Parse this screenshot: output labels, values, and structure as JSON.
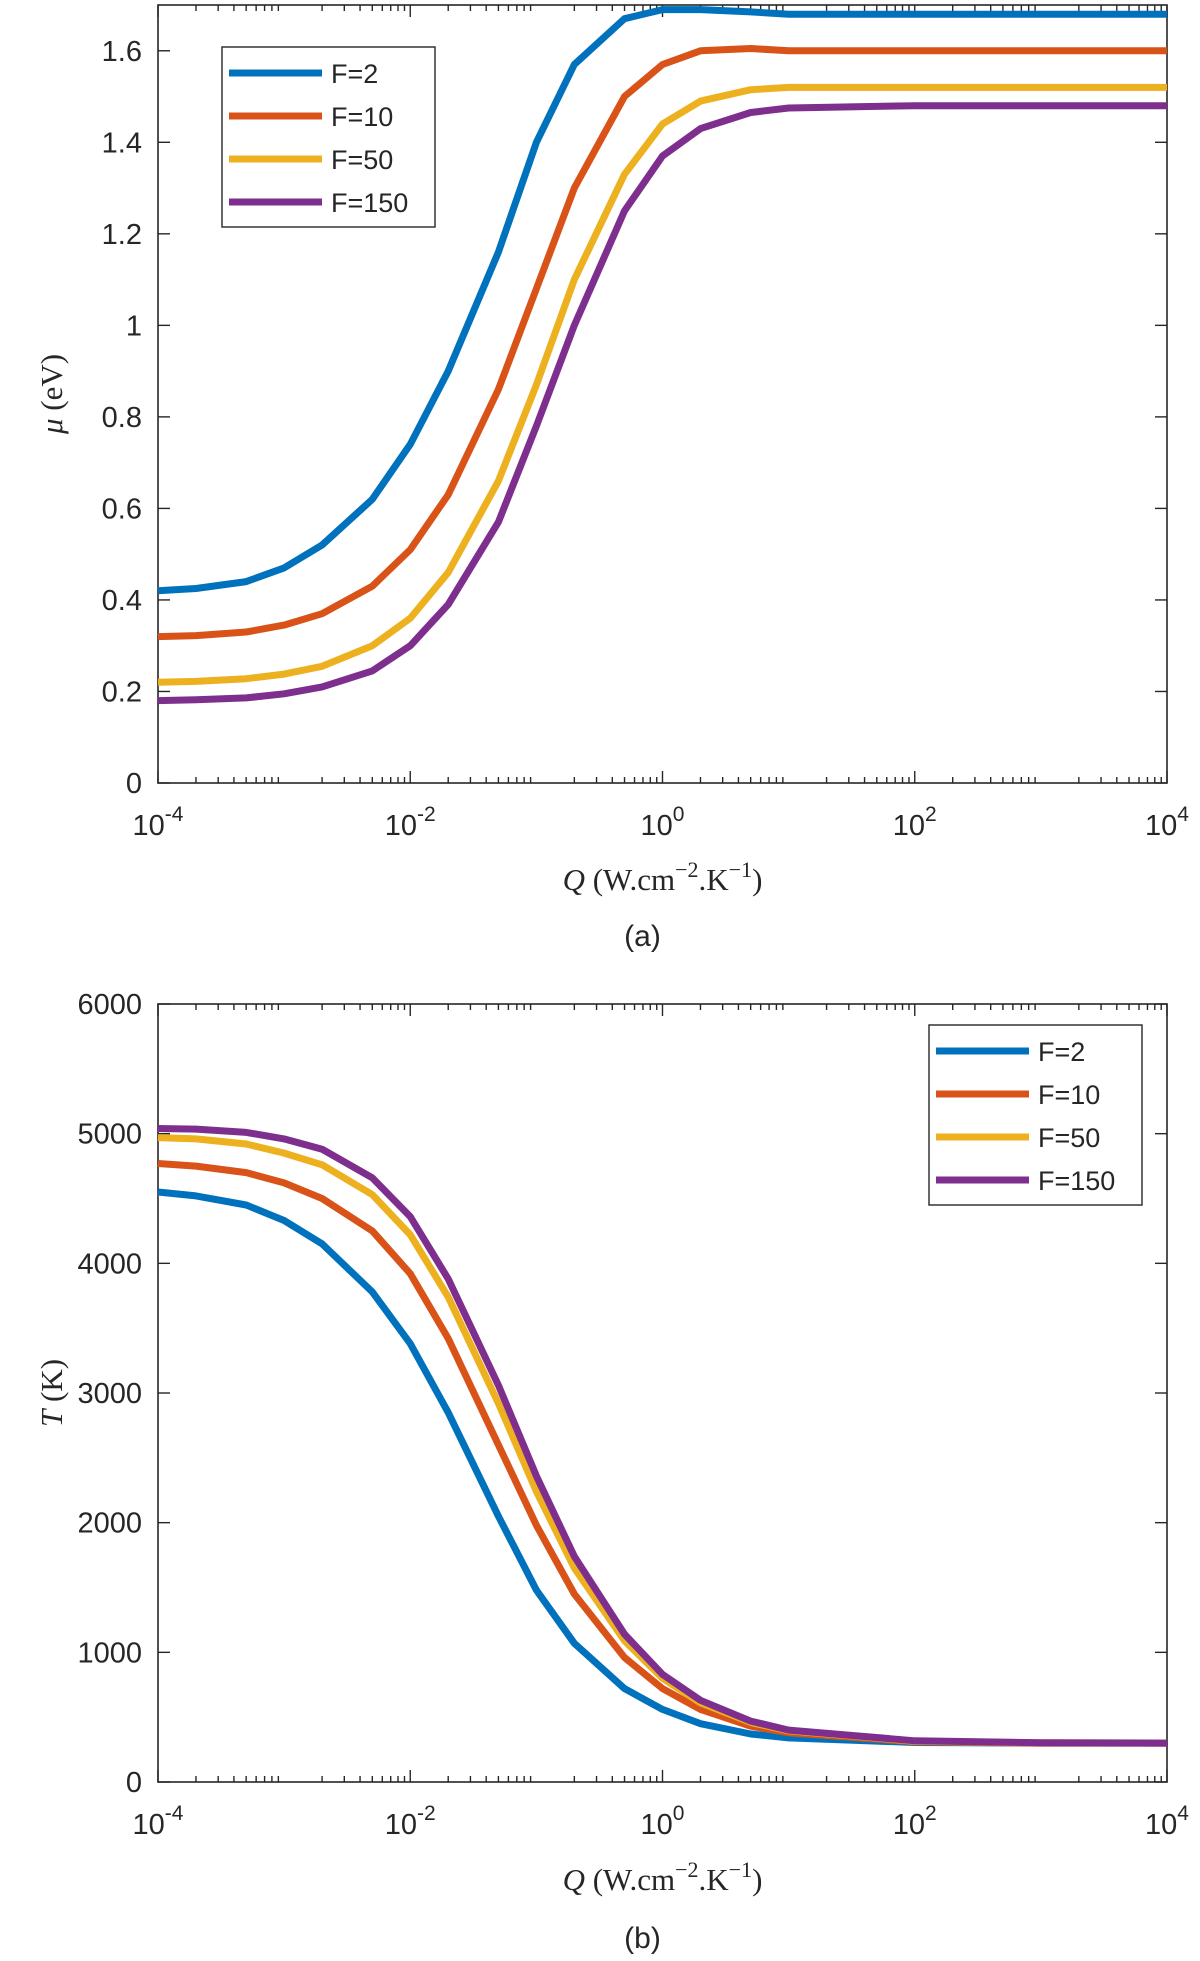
{
  "chart_data": [
    {
      "type": "line",
      "panel": "a",
      "caption": "(a)",
      "xscale": "log",
      "xlim": [
        0.0001,
        10000
      ],
      "ylim": [
        0,
        1.7
      ],
      "xticks": [
        {
          "value": 0.0001,
          "base": "10",
          "exp": "-4"
        },
        {
          "value": 0.01,
          "base": "10",
          "exp": "-2"
        },
        {
          "value": 1,
          "base": "10",
          "exp": "0"
        },
        {
          "value": 100,
          "base": "10",
          "exp": "2"
        },
        {
          "value": 10000,
          "base": "10",
          "exp": "4"
        }
      ],
      "yticks": [
        {
          "value": 0,
          "label": "0"
        },
        {
          "value": 0.2,
          "label": "0.2"
        },
        {
          "value": 0.4,
          "label": "0.4"
        },
        {
          "value": 0.6,
          "label": "0.6"
        },
        {
          "value": 0.8,
          "label": "0.8"
        },
        {
          "value": 1,
          "label": "1"
        },
        {
          "value": 1.2,
          "label": "1.2"
        },
        {
          "value": 1.4,
          "label": "1.4"
        },
        {
          "value": 1.6,
          "label": "1.6"
        }
      ],
      "ylabel": {
        "symbol": "μ",
        "unit": "(eV)"
      },
      "xlabel": {
        "symbol": "Q",
        "unit_pre": "(W.cm",
        "exp1": "−2",
        "mid": ".K",
        "exp2": "−1",
        "unit_post": ")"
      },
      "legend": {
        "placement": "top-left"
      },
      "series": [
        {
          "name": "F=2",
          "color": "#0072BD",
          "x": [
            0.0001,
            0.0002,
            0.0005,
            0.001,
            0.002,
            0.005,
            0.01,
            0.02,
            0.05,
            0.1,
            0.2,
            0.5,
            1,
            2,
            5,
            10,
            100,
            1000,
            10000
          ],
          "y": [
            0.42,
            0.425,
            0.44,
            0.47,
            0.52,
            0.62,
            0.74,
            0.9,
            1.16,
            1.4,
            1.57,
            1.67,
            1.69,
            1.69,
            1.685,
            1.68,
            1.68,
            1.68,
            1.68
          ]
        },
        {
          "name": "F=10",
          "color": "#D95319",
          "x": [
            0.0001,
            0.0002,
            0.0005,
            0.001,
            0.002,
            0.005,
            0.01,
            0.02,
            0.05,
            0.1,
            0.2,
            0.5,
            1,
            2,
            5,
            10,
            100,
            1000,
            10000
          ],
          "y": [
            0.32,
            0.322,
            0.33,
            0.345,
            0.37,
            0.43,
            0.51,
            0.63,
            0.86,
            1.08,
            1.3,
            1.5,
            1.57,
            1.6,
            1.605,
            1.6,
            1.6,
            1.6,
            1.6
          ]
        },
        {
          "name": "F=50",
          "color": "#EDB120",
          "x": [
            0.0001,
            0.0002,
            0.0005,
            0.001,
            0.002,
            0.005,
            0.01,
            0.02,
            0.05,
            0.1,
            0.2,
            0.5,
            1,
            2,
            5,
            10,
            100,
            1000,
            10000
          ],
          "y": [
            0.22,
            0.222,
            0.228,
            0.238,
            0.255,
            0.3,
            0.36,
            0.46,
            0.66,
            0.87,
            1.1,
            1.33,
            1.44,
            1.49,
            1.515,
            1.52,
            1.52,
            1.52,
            1.52
          ]
        },
        {
          "name": "F=150",
          "color": "#7E2F8E",
          "x": [
            0.0001,
            0.0002,
            0.0005,
            0.001,
            0.002,
            0.005,
            0.01,
            0.02,
            0.05,
            0.1,
            0.2,
            0.5,
            1,
            2,
            5,
            10,
            100,
            1000,
            10000
          ],
          "y": [
            0.18,
            0.182,
            0.186,
            0.195,
            0.21,
            0.245,
            0.3,
            0.39,
            0.57,
            0.78,
            1.0,
            1.25,
            1.37,
            1.43,
            1.465,
            1.475,
            1.48,
            1.48,
            1.48
          ]
        }
      ]
    },
    {
      "type": "line",
      "panel": "b",
      "caption": "(b)",
      "xscale": "log",
      "xlim": [
        0.0001,
        10000
      ],
      "ylim": [
        0,
        6000
      ],
      "xticks": [
        {
          "value": 0.0001,
          "base": "10",
          "exp": "-4"
        },
        {
          "value": 0.01,
          "base": "10",
          "exp": "-2"
        },
        {
          "value": 1,
          "base": "10",
          "exp": "0"
        },
        {
          "value": 100,
          "base": "10",
          "exp": "2"
        },
        {
          "value": 10000,
          "base": "10",
          "exp": "4"
        }
      ],
      "yticks": [
        {
          "value": 0,
          "label": "0"
        },
        {
          "value": 1000,
          "label": "1000"
        },
        {
          "value": 2000,
          "label": "2000"
        },
        {
          "value": 3000,
          "label": "3000"
        },
        {
          "value": 4000,
          "label": "4000"
        },
        {
          "value": 5000,
          "label": "5000"
        },
        {
          "value": 6000,
          "label": "6000"
        }
      ],
      "ylabel": {
        "symbol": "T",
        "unit": "(K)"
      },
      "xlabel": {
        "symbol": "Q",
        "unit_pre": "(W.cm",
        "exp1": "−2",
        "mid": ".K",
        "exp2": "−1",
        "unit_post": ")"
      },
      "legend": {
        "placement": "top-right"
      },
      "series": [
        {
          "name": "F=2",
          "color": "#0072BD",
          "x": [
            0.0001,
            0.0002,
            0.0005,
            0.001,
            0.002,
            0.005,
            0.01,
            0.02,
            0.05,
            0.1,
            0.2,
            0.5,
            1,
            2,
            5,
            10,
            100,
            1000,
            10000
          ],
          "y": [
            4550,
            4520,
            4450,
            4330,
            4150,
            3780,
            3380,
            2850,
            2050,
            1480,
            1070,
            720,
            560,
            450,
            370,
            340,
            305,
            300,
            300
          ]
        },
        {
          "name": "F=10",
          "color": "#D95319",
          "x": [
            0.0001,
            0.0002,
            0.0005,
            0.001,
            0.002,
            0.005,
            0.01,
            0.02,
            0.05,
            0.1,
            0.2,
            0.5,
            1,
            2,
            5,
            10,
            100,
            1000,
            10000
          ],
          "y": [
            4770,
            4750,
            4700,
            4620,
            4500,
            4250,
            3920,
            3420,
            2600,
            1980,
            1450,
            960,
            720,
            560,
            430,
            380,
            310,
            300,
            300
          ]
        },
        {
          "name": "F=50",
          "color": "#EDB120",
          "x": [
            0.0001,
            0.0002,
            0.0005,
            0.001,
            0.002,
            0.005,
            0.01,
            0.02,
            0.05,
            0.1,
            0.2,
            0.5,
            1,
            2,
            5,
            10,
            100,
            1000,
            10000
          ],
          "y": [
            4970,
            4960,
            4920,
            4850,
            4760,
            4530,
            4220,
            3740,
            2920,
            2240,
            1650,
            1090,
            800,
            610,
            460,
            395,
            315,
            302,
            300
          ]
        },
        {
          "name": "F=150",
          "color": "#7E2F8E",
          "x": [
            0.0001,
            0.0002,
            0.0005,
            0.001,
            0.002,
            0.005,
            0.01,
            0.02,
            0.05,
            0.1,
            0.2,
            0.5,
            1,
            2,
            5,
            10,
            100,
            1000,
            10000
          ],
          "y": [
            5040,
            5035,
            5010,
            4960,
            4880,
            4660,
            4360,
            3880,
            3060,
            2360,
            1740,
            1140,
            830,
            630,
            470,
            400,
            318,
            303,
            300
          ]
        }
      ]
    }
  ]
}
